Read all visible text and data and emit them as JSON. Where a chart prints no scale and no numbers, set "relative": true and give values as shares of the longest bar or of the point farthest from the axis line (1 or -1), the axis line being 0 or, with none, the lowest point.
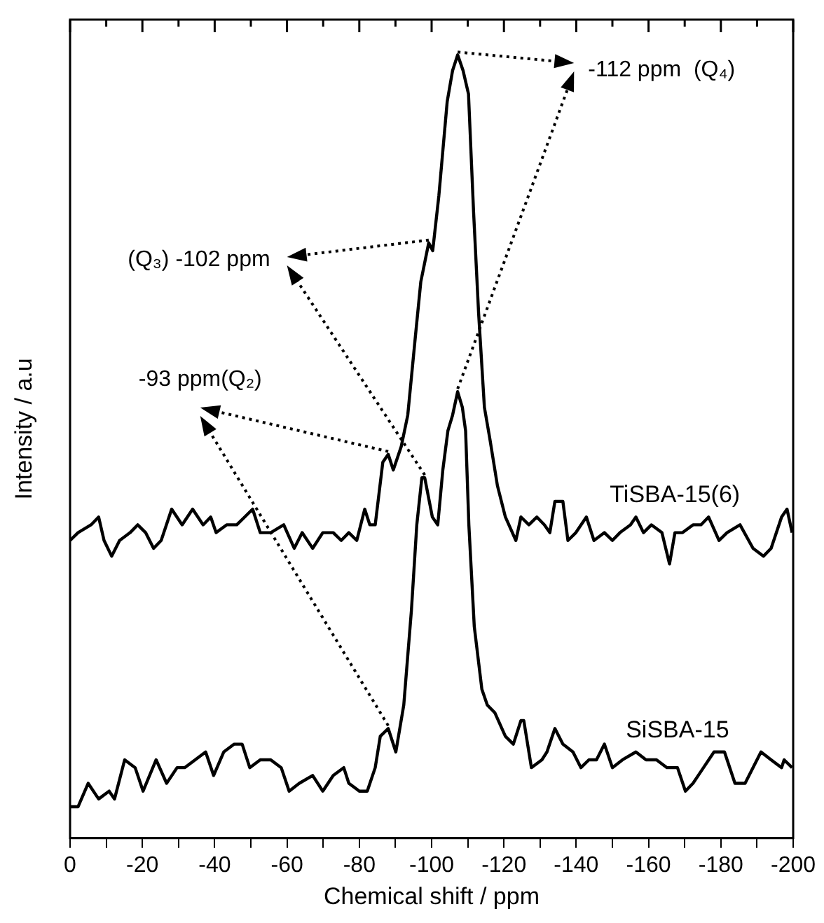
{
  "chart_data": {
    "type": "line",
    "xlabel": "Chemical shift / ppm",
    "ylabel": "Intensity / a.u",
    "relative": true,
    "marker": "none",
    "line_style": "solid",
    "xlim": [
      0,
      -200
    ],
    "xticks": [
      0,
      {
        "value": -10,
        "label": null
      },
      -20,
      {
        "value": -30,
        "label": null
      },
      -40,
      {
        "value": -50,
        "label": null
      },
      -60,
      {
        "value": -70,
        "label": null
      },
      -80,
      {
        "value": -90,
        "label": null
      },
      -100,
      {
        "value": -110,
        "label": null
      },
      -120,
      {
        "value": -130,
        "label": null
      },
      -140,
      {
        "value": -150,
        "label": null
      },
      -160,
      {
        "value": -170,
        "label": null
      },
      -180,
      {
        "value": -190,
        "label": null
      },
      -200
    ],
    "series": [
      {
        "name": "TiSBA-15(6)",
        "color": "#000000",
        "x": [
          0,
          -2.2,
          -5.8,
          -7.9,
          -9.4,
          -11.5,
          -13.7,
          -16.6,
          -18.7,
          -20.9,
          -23.1,
          -25.2,
          -28.1,
          -31.0,
          -33.9,
          -36.8,
          -38.9,
          -40.4,
          -43.3,
          -46.1,
          -48.3,
          -50.5,
          -52.6,
          -55.5,
          -59.1,
          -62.0,
          -64.2,
          -67.1,
          -69.9,
          -72.8,
          -75.0,
          -77.1,
          -79.3,
          -81.5,
          -82.9,
          -84.4,
          -86.5,
          -88.0,
          -89.4,
          -91.6,
          -93.4,
          -95.5,
          -97.0,
          -99.2,
          -100.3,
          -102.0,
          -104.3,
          -105.8,
          -107.2,
          -108.7,
          -110.2,
          -111.6,
          -113.0,
          -114.6,
          -116.1,
          -118.2,
          -120.4,
          -123.3,
          -124.7,
          -126.9,
          -129.1,
          -131.2,
          -132.7,
          -134.1,
          -136.3,
          -137.7,
          -139.9,
          -142.8,
          -144.9,
          -147.8,
          -150.0,
          -152.1,
          -155.0,
          -156.5,
          -158.6,
          -160.8,
          -163.7,
          -165.8,
          -167.3,
          -169.4,
          -172.3,
          -174.5,
          -176.6,
          -179.5,
          -181.7,
          -185.3,
          -188.9,
          -191.8,
          -193.9,
          -196.8,
          -198.3,
          -199.7
        ],
        "values": [
          0.38,
          0.39,
          0.4,
          0.41,
          0.38,
          0.36,
          0.38,
          0.39,
          0.4,
          0.39,
          0.37,
          0.38,
          0.42,
          0.4,
          0.42,
          0.4,
          0.41,
          0.39,
          0.4,
          0.4,
          0.41,
          0.42,
          0.39,
          0.39,
          0.4,
          0.37,
          0.39,
          0.37,
          0.39,
          0.39,
          0.38,
          0.39,
          0.38,
          0.42,
          0.4,
          0.4,
          0.48,
          0.49,
          0.47,
          0.5,
          0.54,
          0.64,
          0.71,
          0.76,
          0.75,
          0.82,
          0.94,
          0.98,
          1.0,
          0.98,
          0.95,
          0.8,
          0.67,
          0.55,
          0.51,
          0.45,
          0.41,
          0.38,
          0.41,
          0.4,
          0.41,
          0.4,
          0.39,
          0.43,
          0.43,
          0.38,
          0.39,
          0.41,
          0.38,
          0.39,
          0.38,
          0.39,
          0.4,
          0.41,
          0.39,
          0.4,
          0.39,
          0.35,
          0.39,
          0.39,
          0.4,
          0.4,
          0.41,
          0.38,
          0.39,
          0.4,
          0.37,
          0.36,
          0.37,
          0.41,
          0.42,
          0.39
        ]
      },
      {
        "name": "SiSBA-15",
        "color": "#000000",
        "x": [
          0,
          -2.2,
          -5.0,
          -7.9,
          -10.8,
          -12.3,
          -15.1,
          -18.0,
          -20.2,
          -23.8,
          -26.7,
          -29.6,
          -31.7,
          -34.6,
          -37.5,
          -39.7,
          -42.5,
          -45.4,
          -47.6,
          -49.7,
          -52.6,
          -55.5,
          -58.4,
          -60.6,
          -63.4,
          -67.1,
          -69.9,
          -72.8,
          -75.7,
          -77.1,
          -80.0,
          -82.2,
          -84.4,
          -85.8,
          -88.0,
          -90.1,
          -92.3,
          -94.4,
          -95.9,
          -97.3,
          -98.1,
          -100.2,
          -101.7,
          -103.1,
          -104.5,
          -105.8,
          -107.2,
          -108.5,
          -109.4,
          -110.3,
          -111.8,
          -113.9,
          -115.4,
          -117.5,
          -120.4,
          -122.6,
          -124.7,
          -125.5,
          -127.6,
          -130.5,
          -131.9,
          -134.1,
          -136.3,
          -139.1,
          -141.3,
          -143.5,
          -145.6,
          -147.8,
          -150.0,
          -152.8,
          -156.5,
          -159.3,
          -162.2,
          -165.1,
          -168.0,
          -170.2,
          -172.3,
          -175.2,
          -178.1,
          -181.0,
          -183.9,
          -186.7,
          -191.1,
          -193.9,
          -196.8,
          -197.5,
          -199.7
        ],
        "values": [
          0.04,
          0.04,
          0.07,
          0.05,
          0.06,
          0.05,
          0.1,
          0.09,
          0.06,
          0.1,
          0.07,
          0.09,
          0.09,
          0.1,
          0.11,
          0.08,
          0.11,
          0.12,
          0.12,
          0.09,
          0.1,
          0.1,
          0.09,
          0.06,
          0.07,
          0.08,
          0.06,
          0.08,
          0.09,
          0.07,
          0.06,
          0.06,
          0.09,
          0.13,
          0.14,
          0.11,
          0.17,
          0.29,
          0.4,
          0.46,
          0.46,
          0.41,
          0.4,
          0.47,
          0.52,
          0.54,
          0.57,
          0.55,
          0.52,
          0.4,
          0.27,
          0.19,
          0.17,
          0.16,
          0.13,
          0.12,
          0.15,
          0.15,
          0.09,
          0.1,
          0.11,
          0.14,
          0.12,
          0.11,
          0.09,
          0.1,
          0.1,
          0.12,
          0.09,
          0.1,
          0.11,
          0.1,
          0.1,
          0.09,
          0.09,
          0.06,
          0.07,
          0.09,
          0.11,
          0.11,
          0.07,
          0.07,
          0.11,
          0.1,
          0.09,
          0.1,
          0.09
        ]
      }
    ],
    "annotations": [
      "-112 ppm  (Q₄)",
      "(Q₃) -102 ppm",
      "-93 ppm(Q₂)"
    ]
  }
}
